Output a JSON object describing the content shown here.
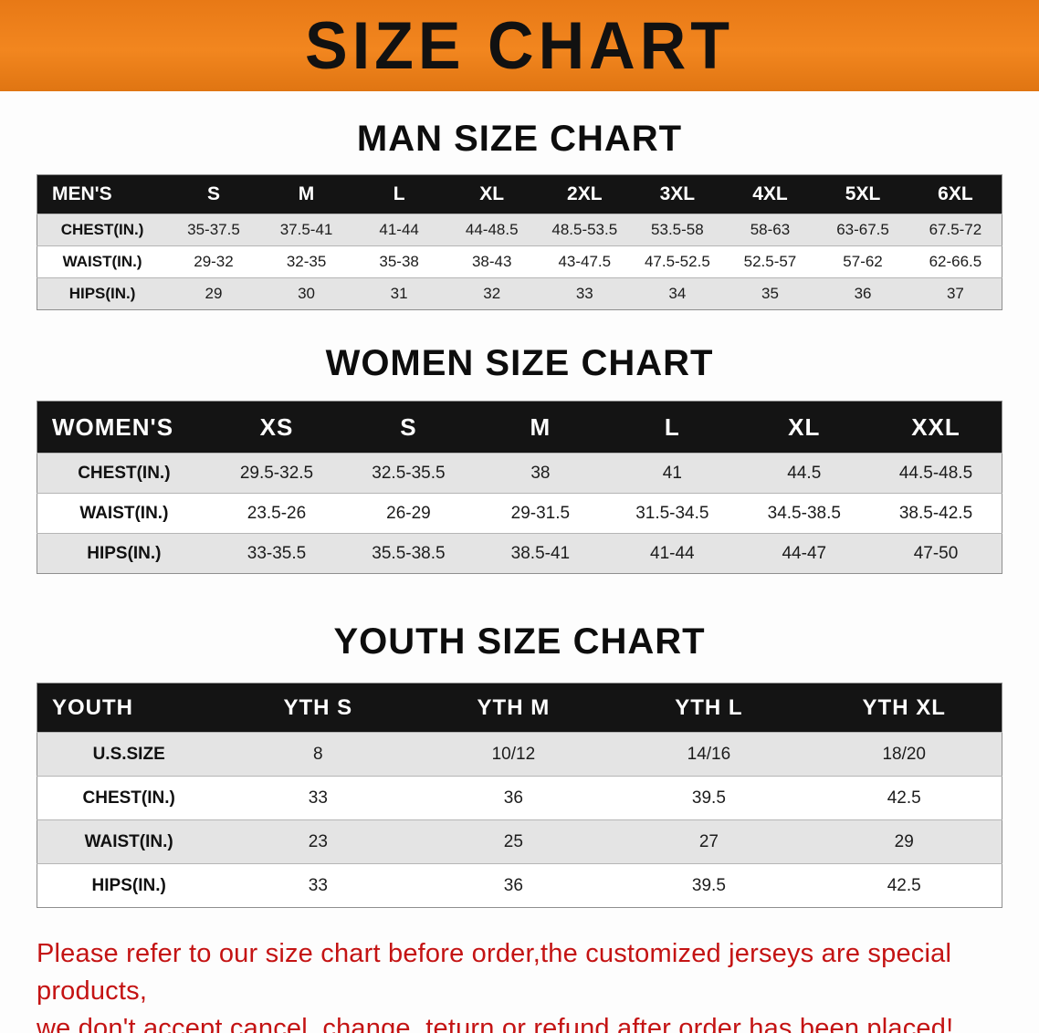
{
  "banner": {
    "title": "SIZE CHART",
    "bg_color": "#f2861f",
    "text_color": "#111111"
  },
  "chart_data": [
    {
      "type": "table",
      "title": "MAN SIZE CHART",
      "header": [
        "MEN'S",
        "S",
        "M",
        "L",
        "XL",
        "2XL",
        "3XL",
        "4XL",
        "5XL",
        "6XL"
      ],
      "rows": [
        {
          "label": "CHEST(IN.)",
          "values": [
            "35-37.5",
            "37.5-41",
            "41-44",
            "44-48.5",
            "48.5-53.5",
            "53.5-58",
            "58-63",
            "63-67.5",
            "67.5-72"
          ]
        },
        {
          "label": "WAIST(IN.)",
          "values": [
            "29-32",
            "32-35",
            "35-38",
            "38-43",
            "43-47.5",
            "47.5-52.5",
            "52.5-57",
            "57-62",
            "62-66.5"
          ]
        },
        {
          "label": "HIPS(IN.)",
          "values": [
            "29",
            "30",
            "31",
            "32",
            "33",
            "34",
            "35",
            "36",
            "37"
          ]
        }
      ]
    },
    {
      "type": "table",
      "title": "WOMEN SIZE CHART",
      "header": [
        "WOMEN'S",
        "XS",
        "S",
        "M",
        "L",
        "XL",
        "XXL"
      ],
      "rows": [
        {
          "label": "CHEST(IN.)",
          "values": [
            "29.5-32.5",
            "32.5-35.5",
            "38",
            "41",
            "44.5",
            "44.5-48.5"
          ]
        },
        {
          "label": "WAIST(IN.)",
          "values": [
            "23.5-26",
            "26-29",
            "29-31.5",
            "31.5-34.5",
            "34.5-38.5",
            "38.5-42.5"
          ]
        },
        {
          "label": "HIPS(IN.)",
          "values": [
            "33-35.5",
            "35.5-38.5",
            "38.5-41",
            "41-44",
            "44-47",
            "47-50"
          ]
        }
      ]
    },
    {
      "type": "table",
      "title": "YOUTH SIZE CHART",
      "header": [
        "YOUTH",
        "YTH S",
        "YTH M",
        "YTH L",
        "YTH XL"
      ],
      "rows": [
        {
          "label": "U.S.SIZE",
          "values": [
            "8",
            "10/12",
            "14/16",
            "18/20"
          ]
        },
        {
          "label": "CHEST(IN.)",
          "values": [
            "33",
            "36",
            "39.5",
            "42.5"
          ]
        },
        {
          "label": "WAIST(IN.)",
          "values": [
            "23",
            "25",
            "27",
            "29"
          ]
        },
        {
          "label": "HIPS(IN.)",
          "values": [
            "33",
            "36",
            "39.5",
            "42.5"
          ]
        }
      ]
    }
  ],
  "footer": {
    "line1": "Please refer to our size chart before order,the customized jerseys are special products,",
    "line2": "we don't accept cancel, change, teturn or refund after order has been placed!",
    "text_color": "#c41313"
  }
}
